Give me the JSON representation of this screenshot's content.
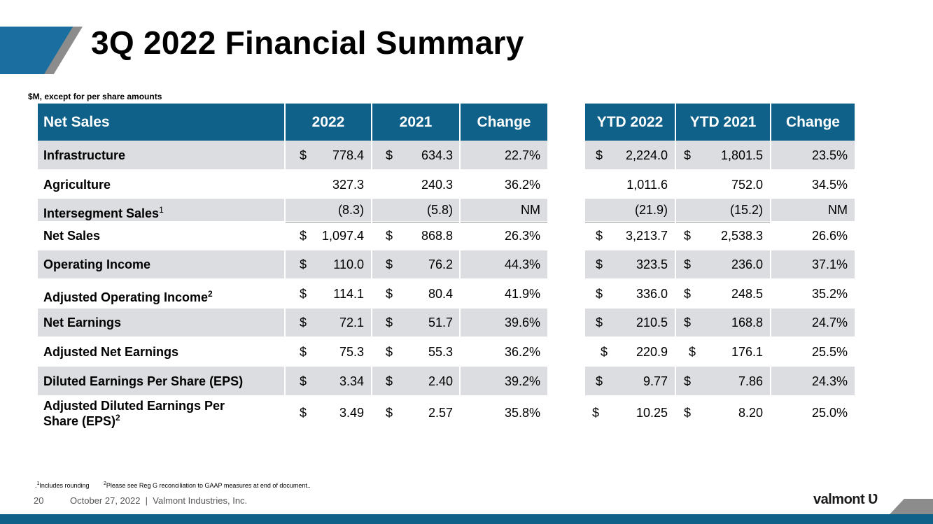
{
  "title": "3Q 2022 Financial Summary",
  "units_note": "$M, except for per share amounts",
  "headers": {
    "net_sales": "Net Sales",
    "y2022": "2022",
    "y2021": "2021",
    "change": "Change",
    "ytd2022": "YTD 2022",
    "ytd2021": "YTD 2021",
    "ytd_change": "Change"
  },
  "rows": [
    {
      "label": "Infrastructure",
      "sup": "",
      "d1": "$",
      "v2022": "778.4",
      "d2": "$",
      "v2021": "634.3",
      "chg": "22.7%",
      "d3": "$",
      "ytd2022": "2,224.0",
      "d4": "$",
      "ytd2021": "1,801.5",
      "ytdchg": "23.5%"
    },
    {
      "label": "Agriculture",
      "sup": "",
      "d1": "",
      "v2022": "327.3",
      "d2": "",
      "v2021": "240.3",
      "chg": "36.2%",
      "d3": "",
      "ytd2022": "1,011.6",
      "d4": "",
      "ytd2021": "752.0",
      "ytdchg": "34.5%"
    },
    {
      "label": "Intersegment Sales",
      "sup": "1",
      "d1": "",
      "v2022": "(8.3)",
      "d2": "",
      "v2021": "(5.8)",
      "chg": "NM",
      "d3": "",
      "ytd2022": "(21.9)",
      "d4": "",
      "ytd2021": "(15.2)",
      "ytdchg": "NM"
    },
    {
      "label": "Net Sales",
      "sup": "",
      "d1": "$",
      "v2022": "1,097.4",
      "d2": "$",
      "v2021": "868.8",
      "chg": "26.3%",
      "d3": "$",
      "ytd2022": "3,213.7",
      "d4": "$",
      "ytd2021": "2,538.3",
      "ytdchg": "26.6%"
    },
    {
      "label": "Operating Income",
      "sup": "",
      "d1": "$",
      "v2022": "110.0",
      "d2": "$",
      "v2021": "76.2",
      "chg": "44.3%",
      "d3": "$",
      "ytd2022": "323.5",
      "d4": "$",
      "ytd2021": "236.0",
      "ytdchg": "37.1%"
    },
    {
      "label": "Adjusted Operating Income",
      "sup": "2",
      "d1": "$",
      "v2022": "114.1",
      "d2": "$",
      "v2021": "80.4",
      "chg": "41.9%",
      "d3": "$",
      "ytd2022": "336.0",
      "d4": "$",
      "ytd2021": "248.5",
      "ytdchg": "35.2%"
    },
    {
      "label": "Net Earnings",
      "sup": "",
      "d1": "$",
      "v2022": "72.1",
      "d2": "$",
      "v2021": "51.7",
      "chg": "39.6%",
      "d3": "$",
      "ytd2022": "210.5",
      "d4": "$",
      "ytd2021": "168.8",
      "ytdchg": "24.7%"
    },
    {
      "label": "Adjusted Net Earnings",
      "sup": "",
      "d1": "$",
      "v2022": "75.3",
      "d2": "$",
      "v2021": "55.3",
      "chg": "36.2%",
      "d3": "$",
      "ytd2022": "220.9",
      "d4": "$",
      "ytd2021": "176.1",
      "ytdchg": "25.5%"
    },
    {
      "label": "Diluted Earnings Per Share (EPS)",
      "sup": "",
      "d1": "$",
      "v2022": "3.34",
      "d2": "$",
      "v2021": "2.40",
      "chg": "39.2%",
      "d3": "$",
      "ytd2022": "9.77",
      "d4": "$",
      "ytd2021": "7.86",
      "ytdchg": "24.3%"
    },
    {
      "label": "Adjusted Diluted Earnings Per",
      "label2": "Share (EPS)",
      "sup": "2",
      "d1": "$",
      "v2022": "3.49",
      "d2": "$",
      "v2021": "2.57",
      "chg": "35.8%",
      "d3": "$",
      "ytd2022": "10.25",
      "d4": "$",
      "ytd2021": "8.20",
      "ytdchg": "25.0%"
    }
  ],
  "footnotes": {
    "fn1_prefix": ".",
    "fn1_sup": "1",
    "fn1_text": "Includes rounding",
    "fn2_sup": "2",
    "fn2_text": "Please see Reg G reconciliation to GAAP measures at end of document.."
  },
  "footer": {
    "page_number": "20",
    "date_company": "October 27, 2022  |  Valmont Industries, Inc.",
    "brand": "valmont",
    "brand_mark": "Ʋ"
  },
  "colors": {
    "header_blue": "#0f6189",
    "row_gray": "#dcdde0",
    "accent_gray": "#8c8c8c"
  }
}
